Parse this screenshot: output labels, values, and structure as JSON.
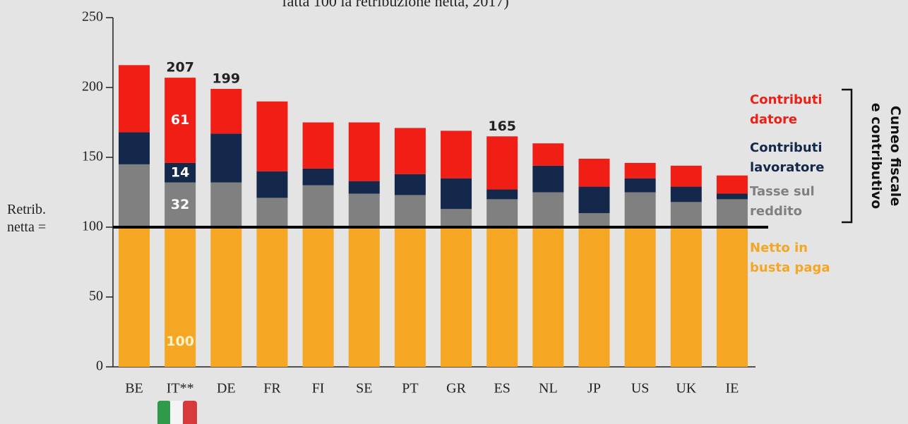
{
  "chart_data": {
    "type": "stacked_bar",
    "title": "fatta 100 la retribuzione netta, 2017)",
    "categories": [
      "BE",
      "IT**",
      "DE",
      "FR",
      "FI",
      "SE",
      "PT",
      "GR",
      "ES",
      "NL",
      "JP",
      "US",
      "UK",
      "IE"
    ],
    "series": [
      {
        "name": "Netto in\nbusta paga",
        "color": "#f5a623",
        "values": [
          100,
          100,
          100,
          100,
          100,
          100,
          100,
          100,
          100,
          100,
          100,
          100,
          100,
          100
        ],
        "value_labels": [
          null,
          "100",
          null,
          null,
          null,
          null,
          null,
          null,
          null,
          null,
          null,
          null,
          null,
          null
        ]
      },
      {
        "name": "Tasse sul\nreddito",
        "color": "#808080",
        "values": [
          45,
          32,
          32,
          21,
          30,
          24,
          23,
          13,
          20,
          25,
          10,
          25,
          18,
          20
        ],
        "value_labels": [
          null,
          "32",
          null,
          null,
          null,
          null,
          null,
          null,
          null,
          null,
          null,
          null,
          null,
          null
        ]
      },
      {
        "name": "Contributi\nlavoratore",
        "color": "#14284b",
        "values": [
          23,
          14,
          35,
          19,
          12,
          9,
          15,
          22,
          7,
          19,
          19,
          10,
          11,
          4
        ],
        "value_labels": [
          null,
          "14",
          null,
          null,
          null,
          null,
          null,
          null,
          null,
          null,
          null,
          null,
          null,
          null
        ]
      },
      {
        "name": "Contributi\ndatore",
        "color": "#f01e14",
        "values": [
          48,
          61,
          32,
          50,
          33,
          42,
          33,
          34,
          38,
          16,
          20,
          11,
          15,
          13
        ],
        "value_labels": [
          null,
          "61",
          null,
          null,
          null,
          null,
          null,
          null,
          null,
          null,
          null,
          null,
          null,
          null
        ]
      }
    ],
    "annotations": [
      {
        "category": "IT**",
        "value": 207
      },
      {
        "category": "DE",
        "value": 199
      },
      {
        "category": "ES",
        "value": 165
      }
    ],
    "reference_line": {
      "value": 100,
      "label": "Retrib.\nnetta ="
    },
    "bracket_label": "Cuneo fiscale\ne contributivo",
    "ylim": [
      0,
      250
    ],
    "yticks": [
      0,
      50,
      100,
      150,
      200,
      250
    ]
  }
}
